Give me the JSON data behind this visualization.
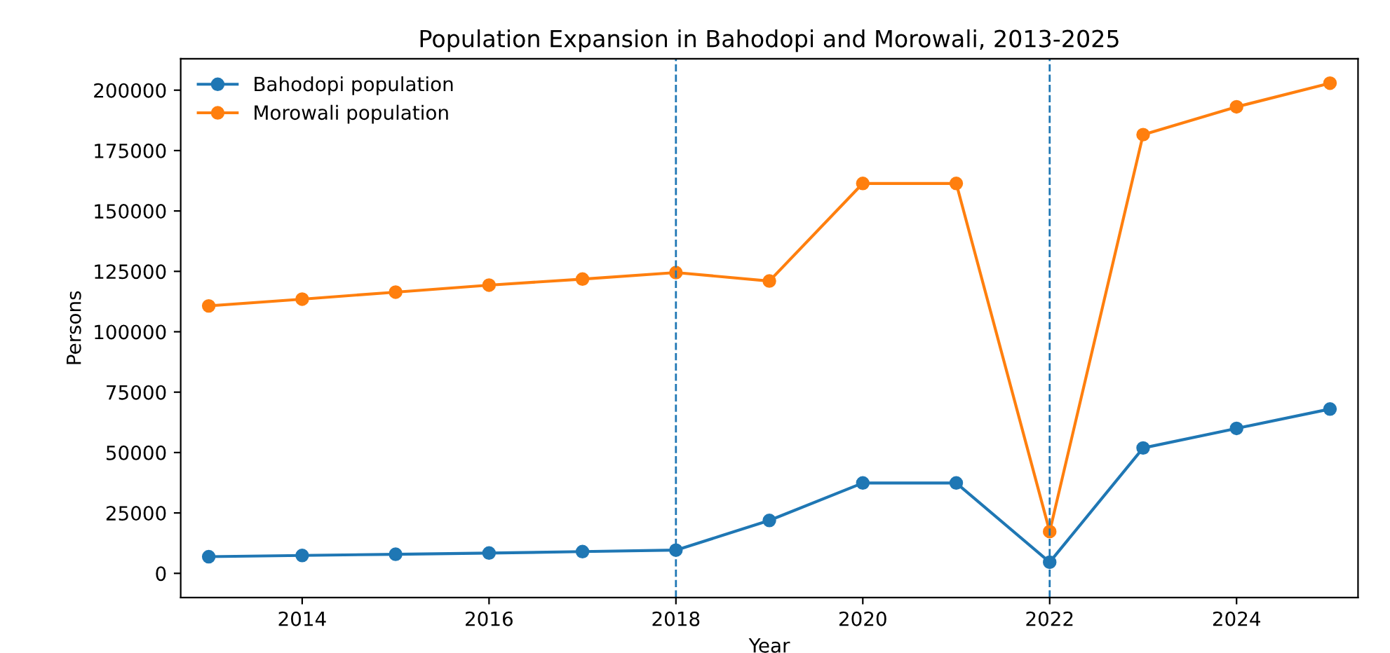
{
  "chart_data": {
    "type": "line",
    "title": "Population Expansion in Bahodopi and Morowali, 2013-2025",
    "xlabel": "Year",
    "ylabel": "Persons",
    "x": [
      2013,
      2014,
      2015,
      2016,
      2017,
      2018,
      2019,
      2020,
      2021,
      2022,
      2023,
      2024,
      2025
    ],
    "series": [
      {
        "name": "Bahodopi population",
        "color": "#1f77b4",
        "values": [
          6900,
          7400,
          7900,
          8400,
          9000,
          9600,
          21900,
          37400,
          37400,
          4600,
          51900,
          60000,
          68000
        ]
      },
      {
        "name": "Morowali population",
        "color": "#ff7f0e",
        "values": [
          110700,
          113500,
          116400,
          119300,
          121800,
          124500,
          121000,
          161400,
          161400,
          17300,
          181600,
          193100,
          202900
        ]
      }
    ],
    "xlim": [
      2012.7,
      2025.3
    ],
    "xticks": [
      2014,
      2016,
      2018,
      2020,
      2022,
      2024
    ],
    "ylim": [
      -10000,
      213000
    ],
    "yticks": [
      0,
      25000,
      50000,
      75000,
      100000,
      125000,
      150000,
      175000,
      200000
    ],
    "ref_lines": [
      {
        "axis": "x",
        "value": 2018,
        "color": "#1f77b4",
        "line_style": "dashed"
      },
      {
        "axis": "x",
        "value": 2022,
        "color": "#1f77b4",
        "line_style": "dashed"
      }
    ],
    "marker": "circle",
    "line_style": "solid",
    "legend": "top left",
    "grid": false
  }
}
